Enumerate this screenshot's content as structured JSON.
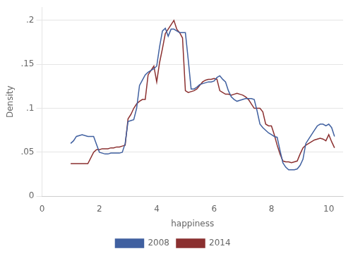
{
  "chart_data": {
    "type": "line",
    "xlabel": "happiness",
    "ylabel": "Density",
    "xlim": [
      0,
      10.5
    ],
    "ylim": [
      0,
      0.215
    ],
    "xticks": [
      0,
      2,
      4,
      6,
      8,
      10
    ],
    "yticks": [
      0,
      {
        "value": 0.05,
        "label": ".05"
      },
      {
        "value": 0.1,
        "label": ".1"
      },
      {
        "value": 0.15,
        "label": ".15"
      },
      {
        "value": 0.2,
        "label": ".2"
      }
    ],
    "grid": "y",
    "legend": "bottom",
    "series": [
      {
        "name": "2008",
        "color": "#4060a0",
        "x": [
          1.0,
          1.1,
          1.2,
          1.4,
          1.6,
          1.8,
          2.0,
          2.1,
          2.2,
          2.3,
          2.4,
          2.5,
          2.6,
          2.7,
          2.8,
          2.9,
          3.0,
          3.1,
          3.2,
          3.3,
          3.4,
          3.5,
          3.6,
          3.7,
          3.8,
          3.9,
          4.0,
          4.1,
          4.2,
          4.3,
          4.4,
          4.5,
          4.6,
          4.7,
          4.8,
          4.9,
          5.0,
          5.1,
          5.2,
          5.3,
          5.4,
          5.5,
          5.6,
          5.7,
          5.8,
          5.9,
          6.0,
          6.1,
          6.2,
          6.3,
          6.4,
          6.5,
          6.6,
          6.7,
          6.8,
          6.9,
          7.0,
          7.1,
          7.2,
          7.3,
          7.4,
          7.5,
          7.6,
          7.7,
          7.8,
          7.9,
          8.0,
          8.1,
          8.2,
          8.3,
          8.4,
          8.5,
          8.6,
          8.7,
          8.8,
          8.9,
          9.0,
          9.1,
          9.2,
          9.3,
          9.4,
          9.5,
          9.6,
          9.7,
          9.8,
          9.9,
          10.0,
          10.1,
          10.2
        ],
        "values": [
          0.06,
          0.063,
          0.068,
          0.07,
          0.068,
          0.068,
          0.05,
          0.049,
          0.048,
          0.048,
          0.049,
          0.049,
          0.049,
          0.049,
          0.05,
          0.06,
          0.085,
          0.086,
          0.087,
          0.1,
          0.126,
          0.132,
          0.138,
          0.141,
          0.143,
          0.145,
          0.148,
          0.17,
          0.188,
          0.191,
          0.182,
          0.19,
          0.19,
          0.188,
          0.186,
          0.186,
          0.186,
          0.155,
          0.122,
          0.122,
          0.124,
          0.127,
          0.128,
          0.129,
          0.13,
          0.13,
          0.131,
          0.135,
          0.137,
          0.133,
          0.13,
          0.12,
          0.113,
          0.11,
          0.108,
          0.109,
          0.11,
          0.111,
          0.111,
          0.111,
          0.11,
          0.097,
          0.082,
          0.078,
          0.075,
          0.072,
          0.07,
          0.068,
          0.067,
          0.052,
          0.038,
          0.033,
          0.03,
          0.03,
          0.03,
          0.031,
          0.035,
          0.042,
          0.06,
          0.065,
          0.07,
          0.075,
          0.08,
          0.082,
          0.082,
          0.08,
          0.082,
          0.078,
          0.068
        ]
      },
      {
        "name": "2014",
        "color": "#8b3030",
        "x": [
          1.0,
          1.1,
          1.2,
          1.4,
          1.6,
          1.8,
          1.9,
          2.0,
          2.1,
          2.2,
          2.3,
          2.4,
          2.5,
          2.6,
          2.7,
          2.8,
          2.9,
          3.0,
          3.1,
          3.2,
          3.3,
          3.4,
          3.5,
          3.6,
          3.7,
          3.8,
          3.9,
          4.0,
          4.1,
          4.2,
          4.3,
          4.4,
          4.5,
          4.6,
          4.7,
          4.8,
          4.9,
          5.0,
          5.1,
          5.2,
          5.3,
          5.4,
          5.5,
          5.6,
          5.7,
          5.8,
          5.9,
          6.0,
          6.1,
          6.2,
          6.3,
          6.4,
          6.5,
          6.6,
          6.7,
          6.8,
          6.9,
          7.0,
          7.1,
          7.2,
          7.3,
          7.4,
          7.5,
          7.6,
          7.7,
          7.8,
          7.9,
          8.0,
          8.1,
          8.2,
          8.3,
          8.4,
          8.5,
          8.6,
          8.7,
          8.8,
          8.9,
          9.0,
          9.1,
          9.2,
          9.3,
          9.4,
          9.5,
          9.6,
          9.7,
          9.8,
          9.9,
          10.0,
          10.1,
          10.2
        ],
        "values": [
          0.037,
          0.037,
          0.037,
          0.037,
          0.037,
          0.05,
          0.053,
          0.053,
          0.054,
          0.054,
          0.054,
          0.055,
          0.055,
          0.056,
          0.056,
          0.057,
          0.058,
          0.088,
          0.093,
          0.1,
          0.105,
          0.108,
          0.11,
          0.11,
          0.138,
          0.143,
          0.148,
          0.13,
          0.152,
          0.168,
          0.185,
          0.19,
          0.195,
          0.2,
          0.19,
          0.186,
          0.18,
          0.12,
          0.118,
          0.119,
          0.12,
          0.122,
          0.126,
          0.13,
          0.132,
          0.133,
          0.133,
          0.134,
          0.133,
          0.12,
          0.118,
          0.116,
          0.116,
          0.115,
          0.116,
          0.117,
          0.116,
          0.115,
          0.113,
          0.11,
          0.105,
          0.1,
          0.1,
          0.1,
          0.096,
          0.082,
          0.08,
          0.08,
          0.07,
          0.058,
          0.048,
          0.04,
          0.039,
          0.039,
          0.038,
          0.039,
          0.04,
          0.048,
          0.055,
          0.058,
          0.06,
          0.062,
          0.064,
          0.065,
          0.066,
          0.065,
          0.063,
          0.07,
          0.062,
          0.055
        ]
      }
    ]
  }
}
